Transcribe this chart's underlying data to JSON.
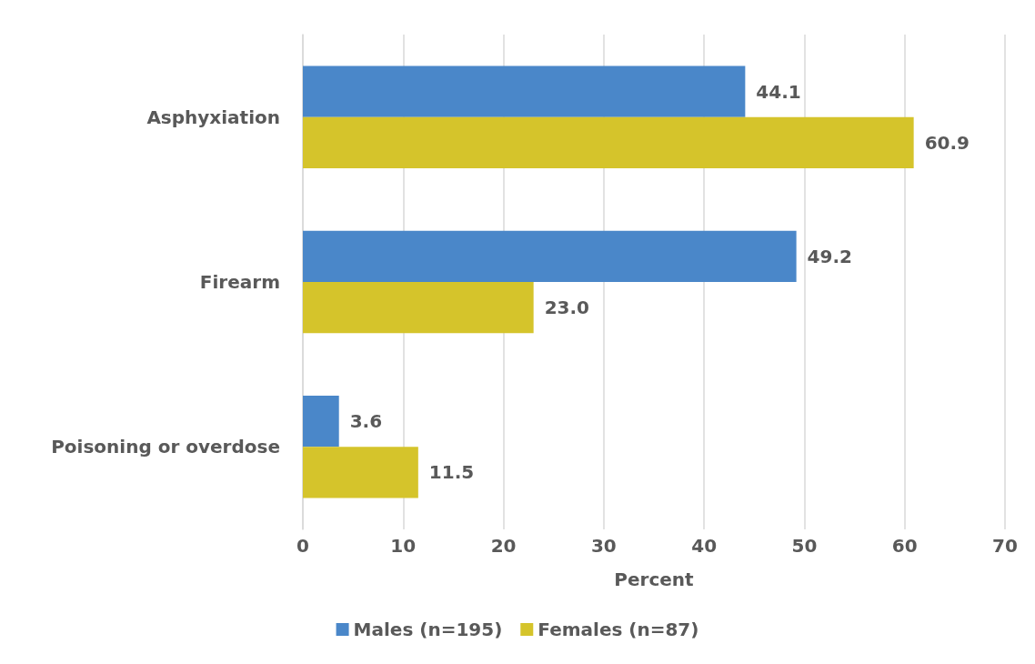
{
  "chart_data": {
    "type": "bar",
    "orientation": "horizontal",
    "xlabel": "Percent",
    "categories": [
      "Asphyxiation",
      "Firearm",
      "Poisoning or overdose"
    ],
    "series": [
      {
        "name": "Males (n=195)",
        "color": "#4a87c9",
        "values": [
          44.1,
          49.2,
          3.6
        ],
        "value_labels": [
          "44.1",
          "49.2",
          "3.6"
        ]
      },
      {
        "name": "Females (n=87)",
        "color": "#d5c42b",
        "values": [
          60.9,
          23.0,
          11.5
        ],
        "value_labels": [
          "60.9",
          "23.0",
          "11.5"
        ]
      }
    ],
    "xlim": [
      0,
      70
    ],
    "xticks": [
      0,
      10,
      20,
      30,
      40,
      50,
      60,
      70
    ],
    "grid": "x",
    "legend": "bottom"
  }
}
